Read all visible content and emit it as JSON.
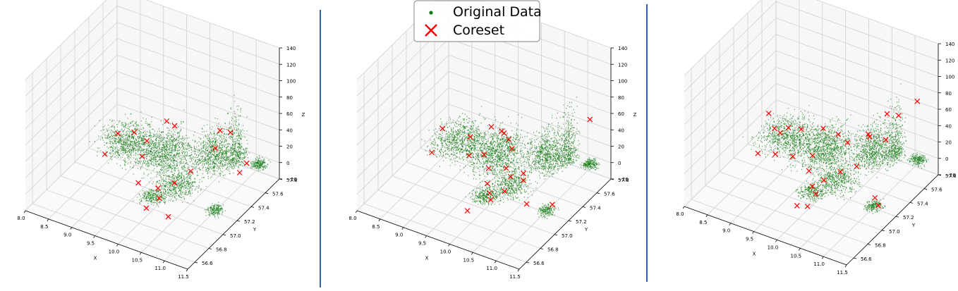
{
  "legend": {
    "entries": [
      {
        "label": "Original Data",
        "marker": "dot",
        "color": "#137a13"
      },
      {
        "label": "Coreset",
        "marker": "x",
        "color": "#ff0000"
      }
    ]
  },
  "colors": {
    "original": "#1a7d1a",
    "coreset": "#ff0000",
    "divider": "#2f5fa8",
    "grid": "#d0d0d0",
    "pane": "#f7f7f7"
  },
  "chart_data": [
    {
      "type": "scatter",
      "projection": "3d",
      "xlabel": "X",
      "ylabel": "Y",
      "zlabel": "Z",
      "xlim": [
        8.0,
        11.5
      ],
      "ylim": [
        56.5,
        57.8
      ],
      "zlim": [
        -20,
        140
      ],
      "xticks": [
        "8.0",
        "8.5",
        "9.0",
        "9.5",
        "10.0",
        "10.5",
        "11.0",
        "11.5"
      ],
      "yticks": [
        "56.6",
        "56.8",
        "57.0",
        "57.2",
        "57.4",
        "57.6",
        "57.8"
      ],
      "zticks": [
        "−20",
        "0",
        "20",
        "40",
        "60",
        "80",
        "100",
        "120",
        "140"
      ],
      "series": [
        {
          "name": "Original Data"
        },
        {
          "name": "Coreset",
          "points": [
            {
              "x": 8.55,
              "y": 57.45,
              "z": 5
            },
            {
              "x": 8.75,
              "y": 57.55,
              "z": 2
            },
            {
              "x": 9.1,
              "y": 57.5,
              "z": 3
            },
            {
              "x": 9.45,
              "y": 57.55,
              "z": 30
            },
            {
              "x": 9.85,
              "y": 57.4,
              "z": 45
            },
            {
              "x": 10.6,
              "y": 57.55,
              "z": 42
            },
            {
              "x": 10.65,
              "y": 57.45,
              "z": 30
            },
            {
              "x": 10.9,
              "y": 57.5,
              "z": 50
            },
            {
              "x": 11.1,
              "y": 57.6,
              "z": 8
            },
            {
              "x": 11.1,
              "y": 57.5,
              "z": 5
            },
            {
              "x": 10.5,
              "y": 57.2,
              "z": 20
            },
            {
              "x": 10.3,
              "y": 57.1,
              "z": 10
            },
            {
              "x": 10.1,
              "y": 57.0,
              "z": 8
            },
            {
              "x": 10.2,
              "y": 56.95,
              "z": 2
            },
            {
              "x": 10.0,
              "y": 56.9,
              "z": -10
            },
            {
              "x": 10.55,
              "y": 56.85,
              "z": -5
            },
            {
              "x": 9.6,
              "y": 57.05,
              "z": 0
            },
            {
              "x": 8.65,
              "y": 57.2,
              "z": 3
            },
            {
              "x": 9.3,
              "y": 57.3,
              "z": 5
            }
          ]
        }
      ]
    },
    {
      "type": "scatter",
      "projection": "3d",
      "xlabel": "X",
      "ylabel": "Y",
      "zlabel": "Z",
      "xlim": [
        8.0,
        11.5
      ],
      "ylim": [
        56.5,
        57.8
      ],
      "zlim": [
        -20,
        140
      ],
      "xticks": [
        "8.0",
        "8.5",
        "9.0",
        "9.5",
        "10.0",
        "10.5",
        "11.0",
        "11.5"
      ],
      "yticks": [
        "56.6",
        "56.8",
        "57.0",
        "57.2",
        "57.4",
        "57.6",
        "57.8"
      ],
      "zticks": [
        "−20",
        "0",
        "20",
        "40",
        "60",
        "80",
        "100",
        "120",
        "140"
      ],
      "series": [
        {
          "name": "Original Data"
        },
        {
          "name": "Coreset",
          "points": [
            {
              "x": 8.4,
              "y": 57.45,
              "z": 8
            },
            {
              "x": 9.0,
              "y": 57.45,
              "z": 10
            },
            {
              "x": 9.3,
              "y": 57.55,
              "z": 20
            },
            {
              "x": 9.5,
              "y": 57.6,
              "z": 12
            },
            {
              "x": 9.6,
              "y": 57.5,
              "z": 25
            },
            {
              "x": 9.75,
              "y": 57.5,
              "z": 18
            },
            {
              "x": 9.9,
              "y": 57.45,
              "z": 14
            },
            {
              "x": 9.45,
              "y": 57.35,
              "z": 6
            },
            {
              "x": 9.2,
              "y": 57.3,
              "z": 4
            },
            {
              "x": 9.7,
              "y": 57.25,
              "z": 3
            },
            {
              "x": 10.0,
              "y": 57.3,
              "z": 5
            },
            {
              "x": 10.25,
              "y": 57.2,
              "z": 8
            },
            {
              "x": 10.45,
              "y": 57.25,
              "z": 12
            },
            {
              "x": 10.6,
              "y": 57.15,
              "z": 15
            },
            {
              "x": 10.35,
              "y": 57.05,
              "z": 5
            },
            {
              "x": 10.1,
              "y": 57.0,
              "z": 2
            },
            {
              "x": 10.2,
              "y": 56.95,
              "z": 0
            },
            {
              "x": 11.2,
              "y": 57.7,
              "z": 55
            },
            {
              "x": 10.9,
              "y": 57.0,
              "z": 5
            },
            {
              "x": 11.3,
              "y": 57.1,
              "z": 4
            },
            {
              "x": 9.85,
              "y": 56.85,
              "z": -12
            },
            {
              "x": 8.55,
              "y": 57.2,
              "z": 3
            },
            {
              "x": 9.9,
              "y": 57.1,
              "z": 1
            }
          ]
        }
      ]
    },
    {
      "type": "scatter",
      "projection": "3d",
      "xlabel": "X",
      "ylabel": "Y",
      "zlabel": "Z",
      "xlim": [
        8.0,
        11.5
      ],
      "ylim": [
        56.5,
        57.8
      ],
      "zlim": [
        -20,
        140
      ],
      "xticks": [
        "8.0",
        "8.5",
        "9.0",
        "9.5",
        "10.0",
        "10.5",
        "11.0",
        "11.5"
      ],
      "yticks": [
        "56.6",
        "56.8",
        "57.0",
        "57.2",
        "57.4",
        "57.6",
        "57.8"
      ],
      "zticks": [
        "−20",
        "0",
        "20",
        "40",
        "60",
        "80",
        "100",
        "120",
        "140"
      ],
      "series": [
        {
          "name": "Original Data"
        },
        {
          "name": "Coreset",
          "points": [
            {
              "x": 8.3,
              "y": 57.5,
              "z": 15
            },
            {
              "x": 8.5,
              "y": 57.45,
              "z": 5
            },
            {
              "x": 8.7,
              "y": 57.4,
              "z": 8
            },
            {
              "x": 8.8,
              "y": 57.45,
              "z": 12
            },
            {
              "x": 9.0,
              "y": 57.5,
              "z": 10
            },
            {
              "x": 9.4,
              "y": 57.55,
              "z": 15
            },
            {
              "x": 9.8,
              "y": 57.5,
              "z": 20
            },
            {
              "x": 10.0,
              "y": 57.5,
              "z": 14
            },
            {
              "x": 10.4,
              "y": 57.55,
              "z": 25
            },
            {
              "x": 10.7,
              "y": 57.6,
              "z": 55
            },
            {
              "x": 10.95,
              "y": 57.6,
              "z": 58
            },
            {
              "x": 11.2,
              "y": 57.7,
              "z": 72
            },
            {
              "x": 10.6,
              "y": 57.4,
              "z": 45
            },
            {
              "x": 10.9,
              "y": 57.45,
              "z": 40
            },
            {
              "x": 10.3,
              "y": 57.2,
              "z": 10
            },
            {
              "x": 10.1,
              "y": 57.1,
              "z": 4
            },
            {
              "x": 10.0,
              "y": 57.0,
              "z": 3
            },
            {
              "x": 10.15,
              "y": 56.95,
              "z": 1
            },
            {
              "x": 9.9,
              "y": 56.85,
              "z": -10
            },
            {
              "x": 10.05,
              "y": 56.9,
              "z": -12
            },
            {
              "x": 11.2,
              "y": 57.1,
              "z": 5
            },
            {
              "x": 11.35,
              "y": 57.05,
              "z": 3
            },
            {
              "x": 8.6,
              "y": 57.15,
              "z": 2
            },
            {
              "x": 8.9,
              "y": 57.2,
              "z": 3
            },
            {
              "x": 9.2,
              "y": 57.25,
              "z": 2
            },
            {
              "x": 9.55,
              "y": 57.3,
              "z": 6
            },
            {
              "x": 9.7,
              "y": 57.15,
              "z": 3
            },
            {
              "x": 10.5,
              "y": 57.3,
              "z": 12
            }
          ]
        }
      ]
    }
  ]
}
